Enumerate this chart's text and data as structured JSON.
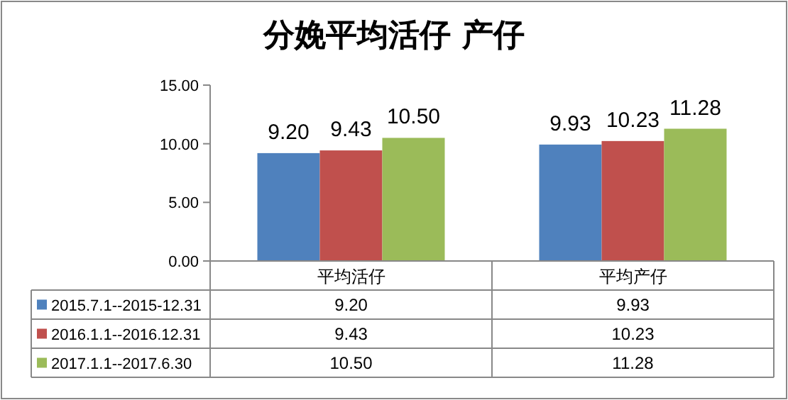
{
  "chart_data": {
    "type": "bar",
    "title": "分娩平均活仔 产仔",
    "categories": [
      "平均活仔",
      "平均产仔"
    ],
    "series": [
      {
        "name": "2015.7.1--2015-12.31",
        "color": "#4f81bd",
        "values": [
          9.2,
          9.93
        ],
        "value_labels": [
          "9.20",
          "9.93"
        ]
      },
      {
        "name": "2016.1.1--2016.12.31",
        "color": "#c0504d",
        "values": [
          9.43,
          10.23
        ],
        "value_labels": [
          "9.43",
          "10.23"
        ]
      },
      {
        "name": "2017.1.1--2017.6.30",
        "color": "#9bbb59",
        "values": [
          10.5,
          11.28
        ],
        "value_labels": [
          "10.50",
          "11.28"
        ]
      }
    ],
    "ylim": [
      0,
      15
    ],
    "yticks": [
      {
        "value": 0,
        "label": "0.00"
      },
      {
        "value": 5,
        "label": "5.00"
      },
      {
        "value": 10,
        "label": "10.00"
      },
      {
        "value": 15,
        "label": "15.00"
      }
    ],
    "legend": "bottom"
  }
}
